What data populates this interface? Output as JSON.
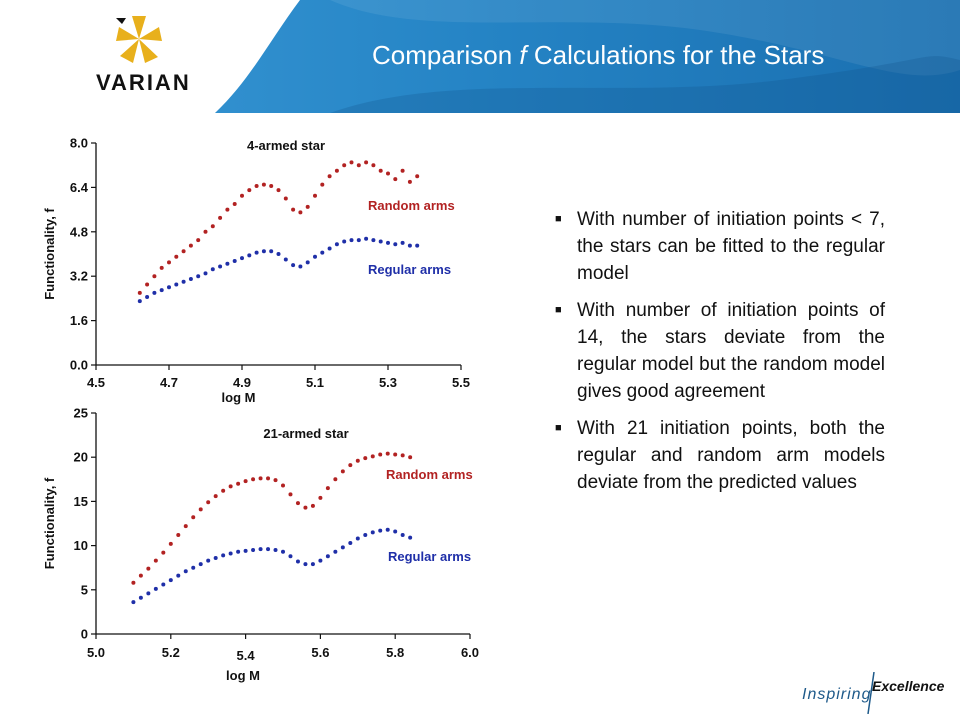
{
  "header": {
    "logo_text": "VARIAN",
    "title_prefix": "Comparison ",
    "title_italic": "f",
    "title_suffix": " Calculations for the Stars"
  },
  "colors": {
    "header_blue": "#1f7ec0",
    "random": "#b22222",
    "regular": "#1f2fa8",
    "logo_gold": "#e8b01c"
  },
  "bullets": [
    "With number of initiation points < 7, the stars can be fitted to the regular model",
    "With number of initiation points of 14, the stars deviate from the regular model but the random model gives good agreement",
    "With 21 initiation points, both the regular and random arm models deviate from the predicted values"
  ],
  "footer": {
    "inspiring": "Inspiring",
    "excellence": "Excellence"
  },
  "chart_data": [
    {
      "type": "scatter",
      "title": "4-armed star",
      "xlabel": "log M",
      "ylabel": "Functionality, f",
      "xlim": [
        4.5,
        5.5
      ],
      "ylim": [
        0.0,
        8.0
      ],
      "xticks": [
        "4.5",
        "4.7",
        "4.9",
        "5.1",
        "5.3",
        "5.5"
      ],
      "yticks": [
        "0.0",
        "1.6",
        "3.2",
        "4.8",
        "6.4",
        "8.0"
      ],
      "series": [
        {
          "name": "Random arms",
          "color": "#b22222",
          "points": [
            [
              4.62,
              2.6
            ],
            [
              4.64,
              2.9
            ],
            [
              4.66,
              3.2
            ],
            [
              4.68,
              3.5
            ],
            [
              4.7,
              3.7
            ],
            [
              4.72,
              3.9
            ],
            [
              4.74,
              4.1
            ],
            [
              4.76,
              4.3
            ],
            [
              4.78,
              4.5
            ],
            [
              4.8,
              4.8
            ],
            [
              4.82,
              5.0
            ],
            [
              4.84,
              5.3
            ],
            [
              4.86,
              5.6
            ],
            [
              4.88,
              5.8
            ],
            [
              4.9,
              6.1
            ],
            [
              4.92,
              6.3
            ],
            [
              4.94,
              6.45
            ],
            [
              4.96,
              6.5
            ],
            [
              4.98,
              6.45
            ],
            [
              5.0,
              6.3
            ],
            [
              5.02,
              6.0
            ],
            [
              5.04,
              5.6
            ],
            [
              5.06,
              5.5
            ],
            [
              5.08,
              5.7
            ],
            [
              5.1,
              6.1
            ],
            [
              5.12,
              6.5
            ],
            [
              5.14,
              6.8
            ],
            [
              5.16,
              7.0
            ],
            [
              5.18,
              7.2
            ],
            [
              5.2,
              7.3
            ],
            [
              5.22,
              7.2
            ],
            [
              5.24,
              7.3
            ],
            [
              5.26,
              7.2
            ],
            [
              5.28,
              7.0
            ],
            [
              5.3,
              6.9
            ],
            [
              5.32,
              6.7
            ],
            [
              5.34,
              7.0
            ],
            [
              5.36,
              6.6
            ],
            [
              5.38,
              6.8
            ]
          ]
        },
        {
          "name": "Regular arms",
          "color": "#1f2fa8",
          "points": [
            [
              4.62,
              2.3
            ],
            [
              4.64,
              2.45
            ],
            [
              4.66,
              2.6
            ],
            [
              4.68,
              2.7
            ],
            [
              4.7,
              2.8
            ],
            [
              4.72,
              2.9
            ],
            [
              4.74,
              3.0
            ],
            [
              4.76,
              3.1
            ],
            [
              4.78,
              3.2
            ],
            [
              4.8,
              3.3
            ],
            [
              4.82,
              3.45
            ],
            [
              4.84,
              3.55
            ],
            [
              4.86,
              3.65
            ],
            [
              4.88,
              3.75
            ],
            [
              4.9,
              3.85
            ],
            [
              4.92,
              3.95
            ],
            [
              4.94,
              4.05
            ],
            [
              4.96,
              4.1
            ],
            [
              4.98,
              4.1
            ],
            [
              5.0,
              4.0
            ],
            [
              5.02,
              3.8
            ],
            [
              5.04,
              3.6
            ],
            [
              5.06,
              3.55
            ],
            [
              5.08,
              3.7
            ],
            [
              5.1,
              3.9
            ],
            [
              5.12,
              4.05
            ],
            [
              5.14,
              4.2
            ],
            [
              5.16,
              4.35
            ],
            [
              5.18,
              4.45
            ],
            [
              5.2,
              4.5
            ],
            [
              5.22,
              4.5
            ],
            [
              5.24,
              4.55
            ],
            [
              5.26,
              4.5
            ],
            [
              5.28,
              4.45
            ],
            [
              5.3,
              4.4
            ],
            [
              5.32,
              4.35
            ],
            [
              5.34,
              4.4
            ],
            [
              5.36,
              4.3
            ],
            [
              5.38,
              4.3
            ]
          ]
        }
      ]
    },
    {
      "type": "scatter",
      "title": "21-armed star",
      "xlabel": "log M",
      "ylabel": "Functionality, f",
      "xlim": [
        5.0,
        6.0
      ],
      "ylim": [
        0,
        25
      ],
      "xticks": [
        "5.0",
        "5.2",
        "5.4",
        "5.6",
        "5.8",
        "6.0"
      ],
      "yticks": [
        "0",
        "5",
        "10",
        "15",
        "20",
        "25"
      ],
      "series": [
        {
          "name": "Random arms",
          "color": "#b22222",
          "points": [
            [
              5.1,
              5.8
            ],
            [
              5.12,
              6.6
            ],
            [
              5.14,
              7.4
            ],
            [
              5.16,
              8.3
            ],
            [
              5.18,
              9.2
            ],
            [
              5.2,
              10.2
            ],
            [
              5.22,
              11.2
            ],
            [
              5.24,
              12.2
            ],
            [
              5.26,
              13.2
            ],
            [
              5.28,
              14.1
            ],
            [
              5.3,
              14.9
            ],
            [
              5.32,
              15.6
            ],
            [
              5.34,
              16.2
            ],
            [
              5.36,
              16.7
            ],
            [
              5.38,
              17.0
            ],
            [
              5.4,
              17.3
            ],
            [
              5.42,
              17.5
            ],
            [
              5.44,
              17.6
            ],
            [
              5.46,
              17.6
            ],
            [
              5.48,
              17.4
            ],
            [
              5.5,
              16.8
            ],
            [
              5.52,
              15.8
            ],
            [
              5.54,
              14.8
            ],
            [
              5.56,
              14.3
            ],
            [
              5.58,
              14.5
            ],
            [
              5.6,
              15.4
            ],
            [
              5.62,
              16.5
            ],
            [
              5.64,
              17.5
            ],
            [
              5.66,
              18.4
            ],
            [
              5.68,
              19.1
            ],
            [
              5.7,
              19.6
            ],
            [
              5.72,
              19.9
            ],
            [
              5.74,
              20.1
            ],
            [
              5.76,
              20.3
            ],
            [
              5.78,
              20.4
            ],
            [
              5.8,
              20.3
            ],
            [
              5.82,
              20.2
            ],
            [
              5.84,
              20.0
            ]
          ]
        },
        {
          "name": "Regular arms",
          "color": "#1f2fa8",
          "points": [
            [
              5.1,
              3.6
            ],
            [
              5.12,
              4.1
            ],
            [
              5.14,
              4.6
            ],
            [
              5.16,
              5.1
            ],
            [
              5.18,
              5.6
            ],
            [
              5.2,
              6.1
            ],
            [
              5.22,
              6.6
            ],
            [
              5.24,
              7.1
            ],
            [
              5.26,
              7.5
            ],
            [
              5.28,
              7.9
            ],
            [
              5.3,
              8.3
            ],
            [
              5.32,
              8.6
            ],
            [
              5.34,
              8.9
            ],
            [
              5.36,
              9.1
            ],
            [
              5.38,
              9.3
            ],
            [
              5.4,
              9.4
            ],
            [
              5.42,
              9.5
            ],
            [
              5.44,
              9.6
            ],
            [
              5.46,
              9.6
            ],
            [
              5.48,
              9.5
            ],
            [
              5.5,
              9.3
            ],
            [
              5.52,
              8.8
            ],
            [
              5.54,
              8.2
            ],
            [
              5.56,
              7.9
            ],
            [
              5.58,
              7.9
            ],
            [
              5.6,
              8.3
            ],
            [
              5.62,
              8.8
            ],
            [
              5.64,
              9.3
            ],
            [
              5.66,
              9.8
            ],
            [
              5.68,
              10.3
            ],
            [
              5.7,
              10.8
            ],
            [
              5.72,
              11.2
            ],
            [
              5.74,
              11.5
            ],
            [
              5.76,
              11.7
            ],
            [
              5.78,
              11.8
            ],
            [
              5.8,
              11.6
            ],
            [
              5.82,
              11.2
            ],
            [
              5.84,
              10.9
            ]
          ]
        }
      ]
    }
  ]
}
